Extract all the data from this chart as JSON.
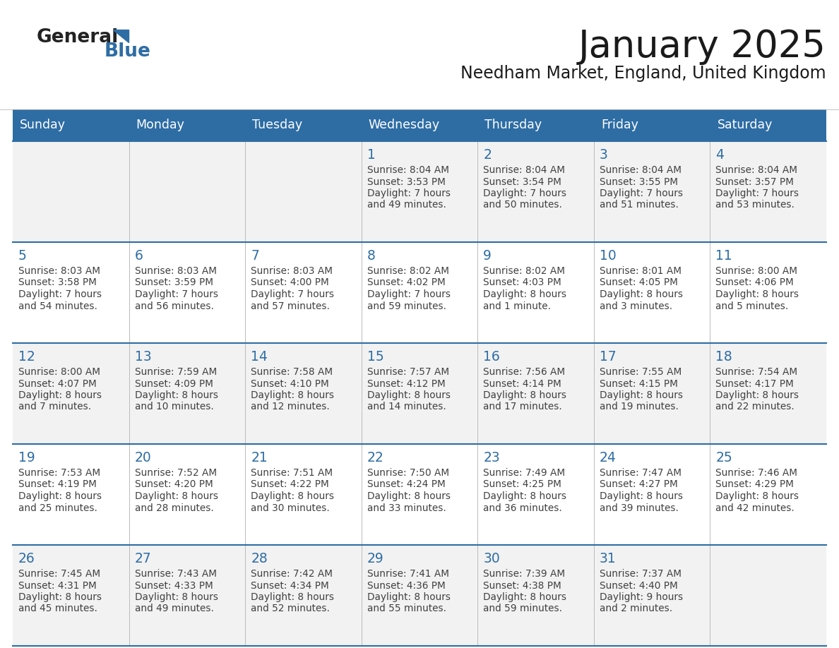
{
  "title": "January 2025",
  "subtitle": "Needham Market, England, United Kingdom",
  "header_bg": "#2E6DA4",
  "header_text_color": "#FFFFFF",
  "days_of_week": [
    "Sunday",
    "Monday",
    "Tuesday",
    "Wednesday",
    "Thursday",
    "Friday",
    "Saturday"
  ],
  "row_bg_odd": "#F2F2F2",
  "row_bg_even": "#FFFFFF",
  "cell_border_color": "#2E6DA4",
  "day_number_color": "#2E6DA4",
  "info_text_color": "#404040",
  "calendar_data": [
    [
      {
        "day": "",
        "info": ""
      },
      {
        "day": "",
        "info": ""
      },
      {
        "day": "",
        "info": ""
      },
      {
        "day": "1",
        "info": "Sunrise: 8:04 AM\nSunset: 3:53 PM\nDaylight: 7 hours\nand 49 minutes."
      },
      {
        "day": "2",
        "info": "Sunrise: 8:04 AM\nSunset: 3:54 PM\nDaylight: 7 hours\nand 50 minutes."
      },
      {
        "day": "3",
        "info": "Sunrise: 8:04 AM\nSunset: 3:55 PM\nDaylight: 7 hours\nand 51 minutes."
      },
      {
        "day": "4",
        "info": "Sunrise: 8:04 AM\nSunset: 3:57 PM\nDaylight: 7 hours\nand 53 minutes."
      }
    ],
    [
      {
        "day": "5",
        "info": "Sunrise: 8:03 AM\nSunset: 3:58 PM\nDaylight: 7 hours\nand 54 minutes."
      },
      {
        "day": "6",
        "info": "Sunrise: 8:03 AM\nSunset: 3:59 PM\nDaylight: 7 hours\nand 56 minutes."
      },
      {
        "day": "7",
        "info": "Sunrise: 8:03 AM\nSunset: 4:00 PM\nDaylight: 7 hours\nand 57 minutes."
      },
      {
        "day": "8",
        "info": "Sunrise: 8:02 AM\nSunset: 4:02 PM\nDaylight: 7 hours\nand 59 minutes."
      },
      {
        "day": "9",
        "info": "Sunrise: 8:02 AM\nSunset: 4:03 PM\nDaylight: 8 hours\nand 1 minute."
      },
      {
        "day": "10",
        "info": "Sunrise: 8:01 AM\nSunset: 4:05 PM\nDaylight: 8 hours\nand 3 minutes."
      },
      {
        "day": "11",
        "info": "Sunrise: 8:00 AM\nSunset: 4:06 PM\nDaylight: 8 hours\nand 5 minutes."
      }
    ],
    [
      {
        "day": "12",
        "info": "Sunrise: 8:00 AM\nSunset: 4:07 PM\nDaylight: 8 hours\nand 7 minutes."
      },
      {
        "day": "13",
        "info": "Sunrise: 7:59 AM\nSunset: 4:09 PM\nDaylight: 8 hours\nand 10 minutes."
      },
      {
        "day": "14",
        "info": "Sunrise: 7:58 AM\nSunset: 4:10 PM\nDaylight: 8 hours\nand 12 minutes."
      },
      {
        "day": "15",
        "info": "Sunrise: 7:57 AM\nSunset: 4:12 PM\nDaylight: 8 hours\nand 14 minutes."
      },
      {
        "day": "16",
        "info": "Sunrise: 7:56 AM\nSunset: 4:14 PM\nDaylight: 8 hours\nand 17 minutes."
      },
      {
        "day": "17",
        "info": "Sunrise: 7:55 AM\nSunset: 4:15 PM\nDaylight: 8 hours\nand 19 minutes."
      },
      {
        "day": "18",
        "info": "Sunrise: 7:54 AM\nSunset: 4:17 PM\nDaylight: 8 hours\nand 22 minutes."
      }
    ],
    [
      {
        "day": "19",
        "info": "Sunrise: 7:53 AM\nSunset: 4:19 PM\nDaylight: 8 hours\nand 25 minutes."
      },
      {
        "day": "20",
        "info": "Sunrise: 7:52 AM\nSunset: 4:20 PM\nDaylight: 8 hours\nand 28 minutes."
      },
      {
        "day": "21",
        "info": "Sunrise: 7:51 AM\nSunset: 4:22 PM\nDaylight: 8 hours\nand 30 minutes."
      },
      {
        "day": "22",
        "info": "Sunrise: 7:50 AM\nSunset: 4:24 PM\nDaylight: 8 hours\nand 33 minutes."
      },
      {
        "day": "23",
        "info": "Sunrise: 7:49 AM\nSunset: 4:25 PM\nDaylight: 8 hours\nand 36 minutes."
      },
      {
        "day": "24",
        "info": "Sunrise: 7:47 AM\nSunset: 4:27 PM\nDaylight: 8 hours\nand 39 minutes."
      },
      {
        "day": "25",
        "info": "Sunrise: 7:46 AM\nSunset: 4:29 PM\nDaylight: 8 hours\nand 42 minutes."
      }
    ],
    [
      {
        "day": "26",
        "info": "Sunrise: 7:45 AM\nSunset: 4:31 PM\nDaylight: 8 hours\nand 45 minutes."
      },
      {
        "day": "27",
        "info": "Sunrise: 7:43 AM\nSunset: 4:33 PM\nDaylight: 8 hours\nand 49 minutes."
      },
      {
        "day": "28",
        "info": "Sunrise: 7:42 AM\nSunset: 4:34 PM\nDaylight: 8 hours\nand 52 minutes."
      },
      {
        "day": "29",
        "info": "Sunrise: 7:41 AM\nSunset: 4:36 PM\nDaylight: 8 hours\nand 55 minutes."
      },
      {
        "day": "30",
        "info": "Sunrise: 7:39 AM\nSunset: 4:38 PM\nDaylight: 8 hours\nand 59 minutes."
      },
      {
        "day": "31",
        "info": "Sunrise: 7:37 AM\nSunset: 4:40 PM\nDaylight: 9 hours\nand 2 minutes."
      },
      {
        "day": "",
        "info": ""
      }
    ]
  ]
}
